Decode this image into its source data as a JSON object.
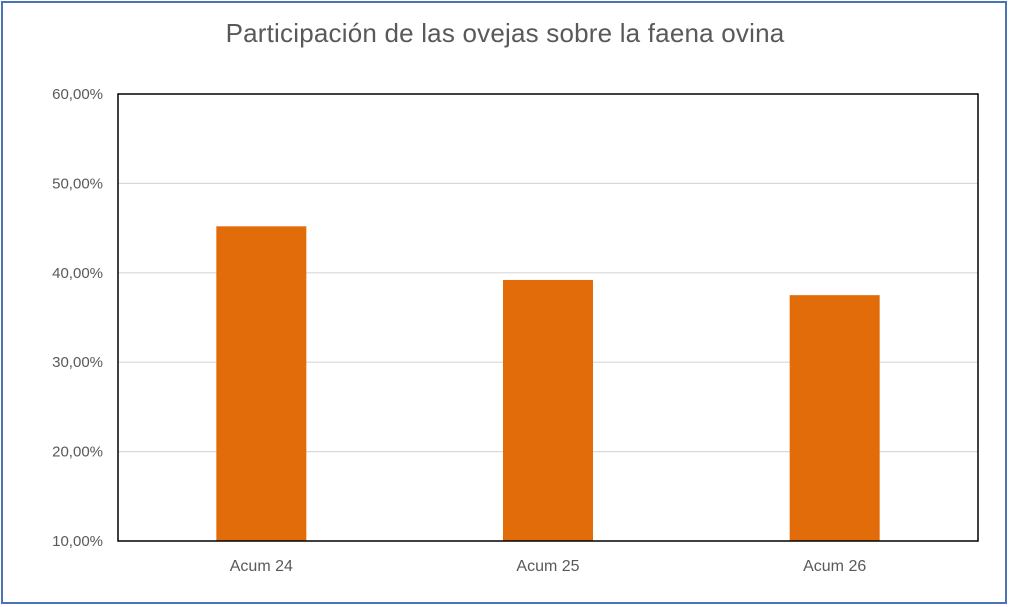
{
  "chart_data": {
    "type": "bar",
    "title": "Participación de las ovejas sobre la faena ovina",
    "categories": [
      "Acum 24",
      "Acum 25",
      "Acum 26"
    ],
    "series": [
      {
        "values": [
          45.2,
          39.2,
          37.5
        ],
        "color": "#e36c0a"
      }
    ],
    "ylim": [
      10,
      60
    ],
    "yticks": [
      "10,00%",
      "20,00%",
      "30,00%",
      "40,00%",
      "50,00%",
      "60,00%"
    ],
    "ytick_values": [
      10,
      20,
      30,
      40,
      50,
      60
    ],
    "xlabel": "",
    "ylabel": "",
    "grid": true,
    "legend": "none"
  }
}
